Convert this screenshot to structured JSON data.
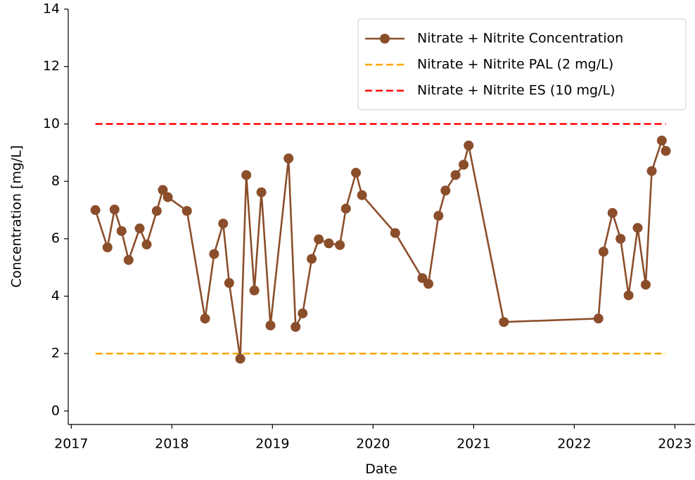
{
  "chart_data": {
    "type": "line",
    "xlabel": "Date",
    "ylabel": "Concentration [mg/L]",
    "xlim": [
      2016.97,
      2023.2
    ],
    "xticks": [
      2017,
      2018,
      2019,
      2020,
      2021,
      2022,
      2023
    ],
    "ylim": [
      -0.47,
      14
    ],
    "yticks": [
      0,
      2,
      4,
      6,
      8,
      10,
      12,
      14
    ],
    "legend": "upper right",
    "x": [
      2017.24,
      2017.36,
      2017.43,
      2017.5,
      2017.57,
      2017.68,
      2017.75,
      2017.85,
      2017.91,
      2017.96,
      2018.15,
      2018.33,
      2018.42,
      2018.51,
      2018.57,
      2018.68,
      2018.74,
      2018.82,
      2018.89,
      2018.98,
      2019.16,
      2019.23,
      2019.3,
      2019.39,
      2019.46,
      2019.56,
      2019.67,
      2019.73,
      2019.83,
      2019.89,
      2020.22,
      2020.49,
      2020.55,
      2020.65,
      2020.72,
      2020.82,
      2020.9,
      2020.95,
      2021.3,
      2022.24,
      2022.29,
      2022.38,
      2022.46,
      2022.54,
      2022.63,
      2022.71,
      2022.77,
      2022.87,
      2022.91
    ],
    "series": [
      {
        "name": "Nitrate + Nitrite Concentration",
        "color": "#8b4e2b",
        "values": [
          7.0,
          5.7,
          7.02,
          6.27,
          5.26,
          6.36,
          5.8,
          6.97,
          7.7,
          7.45,
          6.97,
          3.22,
          5.47,
          6.53,
          4.46,
          1.82,
          8.22,
          4.2,
          7.62,
          2.98,
          8.8,
          2.93,
          3.4,
          5.3,
          5.98,
          5.84,
          5.78,
          7.05,
          8.3,
          7.52,
          6.2,
          4.63,
          4.43,
          6.8,
          7.68,
          8.22,
          8.58,
          9.25,
          3.1,
          3.22,
          5.55,
          6.9,
          6.0,
          4.03,
          6.38,
          4.4,
          8.36,
          9.42,
          9.06
        ]
      }
    ],
    "hlines": [
      {
        "name": "Nitrate + Nitrite PAL (2 mg/L)",
        "color": "#ffa500",
        "value": 2
      },
      {
        "name": "Nitrate + Nitrite ES (10 mg/L)",
        "color": "#ff0000",
        "value": 10
      }
    ]
  }
}
